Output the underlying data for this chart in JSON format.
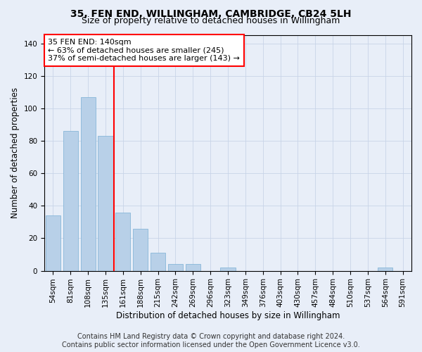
{
  "title": "35, FEN END, WILLINGHAM, CAMBRIDGE, CB24 5LH",
  "subtitle": "Size of property relative to detached houses in Willingham",
  "xlabel": "Distribution of detached houses by size in Willingham",
  "ylabel": "Number of detached properties",
  "bar_labels": [
    "54sqm",
    "81sqm",
    "108sqm",
    "135sqm",
    "161sqm",
    "188sqm",
    "215sqm",
    "242sqm",
    "269sqm",
    "296sqm",
    "323sqm",
    "349sqm",
    "376sqm",
    "403sqm",
    "430sqm",
    "457sqm",
    "484sqm",
    "510sqm",
    "537sqm",
    "564sqm",
    "591sqm"
  ],
  "bar_values": [
    34,
    86,
    107,
    83,
    36,
    26,
    11,
    4,
    4,
    0,
    2,
    0,
    0,
    0,
    0,
    0,
    0,
    0,
    0,
    2,
    0
  ],
  "bar_color": "#b8d0e8",
  "bar_edge_color": "#7aafd4",
  "vline_index": 3.5,
  "vline_color": "red",
  "annotation_text": "35 FEN END: 140sqm\n← 63% of detached houses are smaller (245)\n37% of semi-detached houses are larger (143) →",
  "annotation_box_color": "white",
  "annotation_box_edge": "red",
  "ylim": [
    0,
    145
  ],
  "yticks": [
    0,
    20,
    40,
    60,
    80,
    100,
    120,
    140
  ],
  "grid_color": "#c8d4e8",
  "background_color": "#e8eef8",
  "footer_line1": "Contains HM Land Registry data © Crown copyright and database right 2024.",
  "footer_line2": "Contains public sector information licensed under the Open Government Licence v3.0.",
  "title_fontsize": 10,
  "subtitle_fontsize": 9,
  "axis_label_fontsize": 8.5,
  "tick_fontsize": 7.5,
  "footer_fontsize": 7,
  "annotation_fontsize": 8
}
